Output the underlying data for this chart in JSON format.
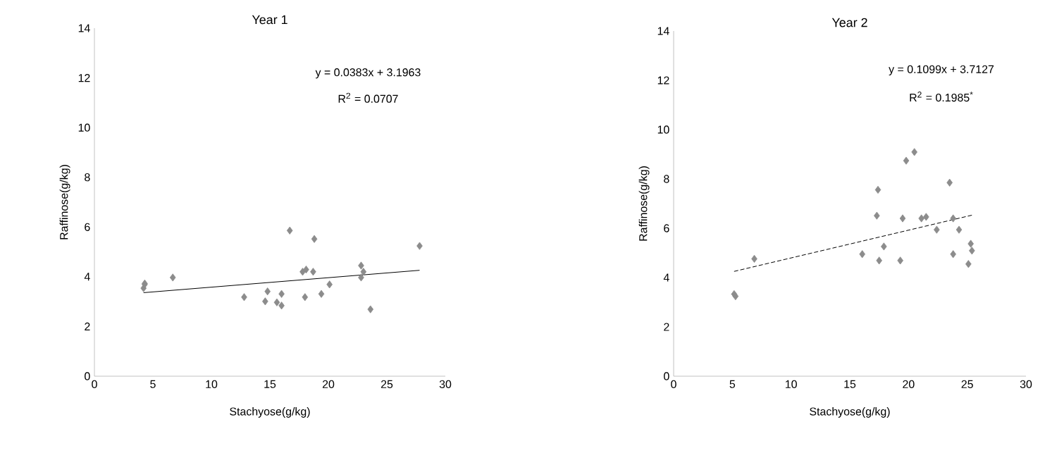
{
  "chart_data": [
    {
      "type": "scatter",
      "title": "Year 1",
      "xlabel": "Stachyose(g/kg)",
      "ylabel": "Raffinose(g/kg)",
      "xlim": [
        0,
        30
      ],
      "ylim": [
        0,
        14
      ],
      "xticks": [
        0,
        5,
        10,
        15,
        20,
        25,
        30
      ],
      "yticks": [
        0,
        2,
        4,
        6,
        8,
        10,
        12,
        14
      ],
      "grid": false,
      "annotations": [
        "y = 0.0383x + 3.1963",
        "R$^{2}$ = 0.0707"
      ],
      "series": [
        {
          "marker": "diamond",
          "color": "#8c8c8c",
          "x": [
            4.2,
            4.3,
            4.3,
            6.7,
            12.8,
            14.8,
            14.6,
            15.6,
            16.0,
            16.0,
            16.7,
            17.8,
            18.1,
            18.0,
            18.7,
            18.8,
            19.4,
            20.1,
            22.8,
            23.0,
            22.8,
            23.6,
            27.8
          ],
          "values": [
            3.54,
            3.69,
            3.73,
            3.97,
            3.18,
            3.41,
            3.01,
            2.97,
            2.84,
            3.31,
            5.86,
            4.2,
            4.29,
            3.18,
            4.2,
            5.52,
            3.31,
            3.69,
            4.45,
            4.2,
            3.97,
            2.69,
            5.24
          ]
        },
        {
          "type": "line",
          "marker": "none",
          "line_style": "solid",
          "color": "#000000",
          "x": [
            4.2,
            27.8
          ],
          "values": [
            3.36,
            4.26
          ]
        }
      ]
    },
    {
      "type": "scatter",
      "title": "Year 2",
      "xlabel": "Stachyose(g/kg)",
      "ylabel": "Raffinose(g/kg)",
      "xlim": [
        0,
        30
      ],
      "ylim": [
        0,
        14
      ],
      "xticks": [
        0,
        5,
        10,
        15,
        20,
        25,
        30
      ],
      "yticks": [
        0,
        2,
        4,
        6,
        8,
        10,
        12,
        14
      ],
      "grid": false,
      "annotations": [
        "y = 0.1099x + 3.7127",
        "R$^{2}$ = 0.1985$^{*}$"
      ],
      "series": [
        {
          "marker": "diamond",
          "color": "#8c8c8c",
          "x": [
            5.15,
            5.27,
            6.87,
            16.06,
            17.4,
            17.3,
            17.5,
            17.9,
            19.3,
            19.5,
            19.8,
            20.5,
            21.1,
            21.5,
            22.4,
            23.5,
            23.8,
            23.8,
            24.3,
            25.1,
            25.3,
            25.4
          ],
          "values": [
            3.33,
            3.24,
            4.76,
            4.95,
            7.56,
            6.51,
            4.69,
            5.26,
            4.69,
            6.4,
            8.74,
            9.09,
            6.4,
            6.46,
            5.94,
            7.85,
            4.95,
            6.4,
            5.94,
            4.55,
            5.37,
            5.09
          ]
        },
        {
          "type": "line",
          "marker": "none",
          "line_style": "dashed",
          "color": "#000000",
          "x": [
            5.15,
            25.4
          ],
          "values": [
            4.25,
            6.53
          ]
        }
      ]
    }
  ]
}
